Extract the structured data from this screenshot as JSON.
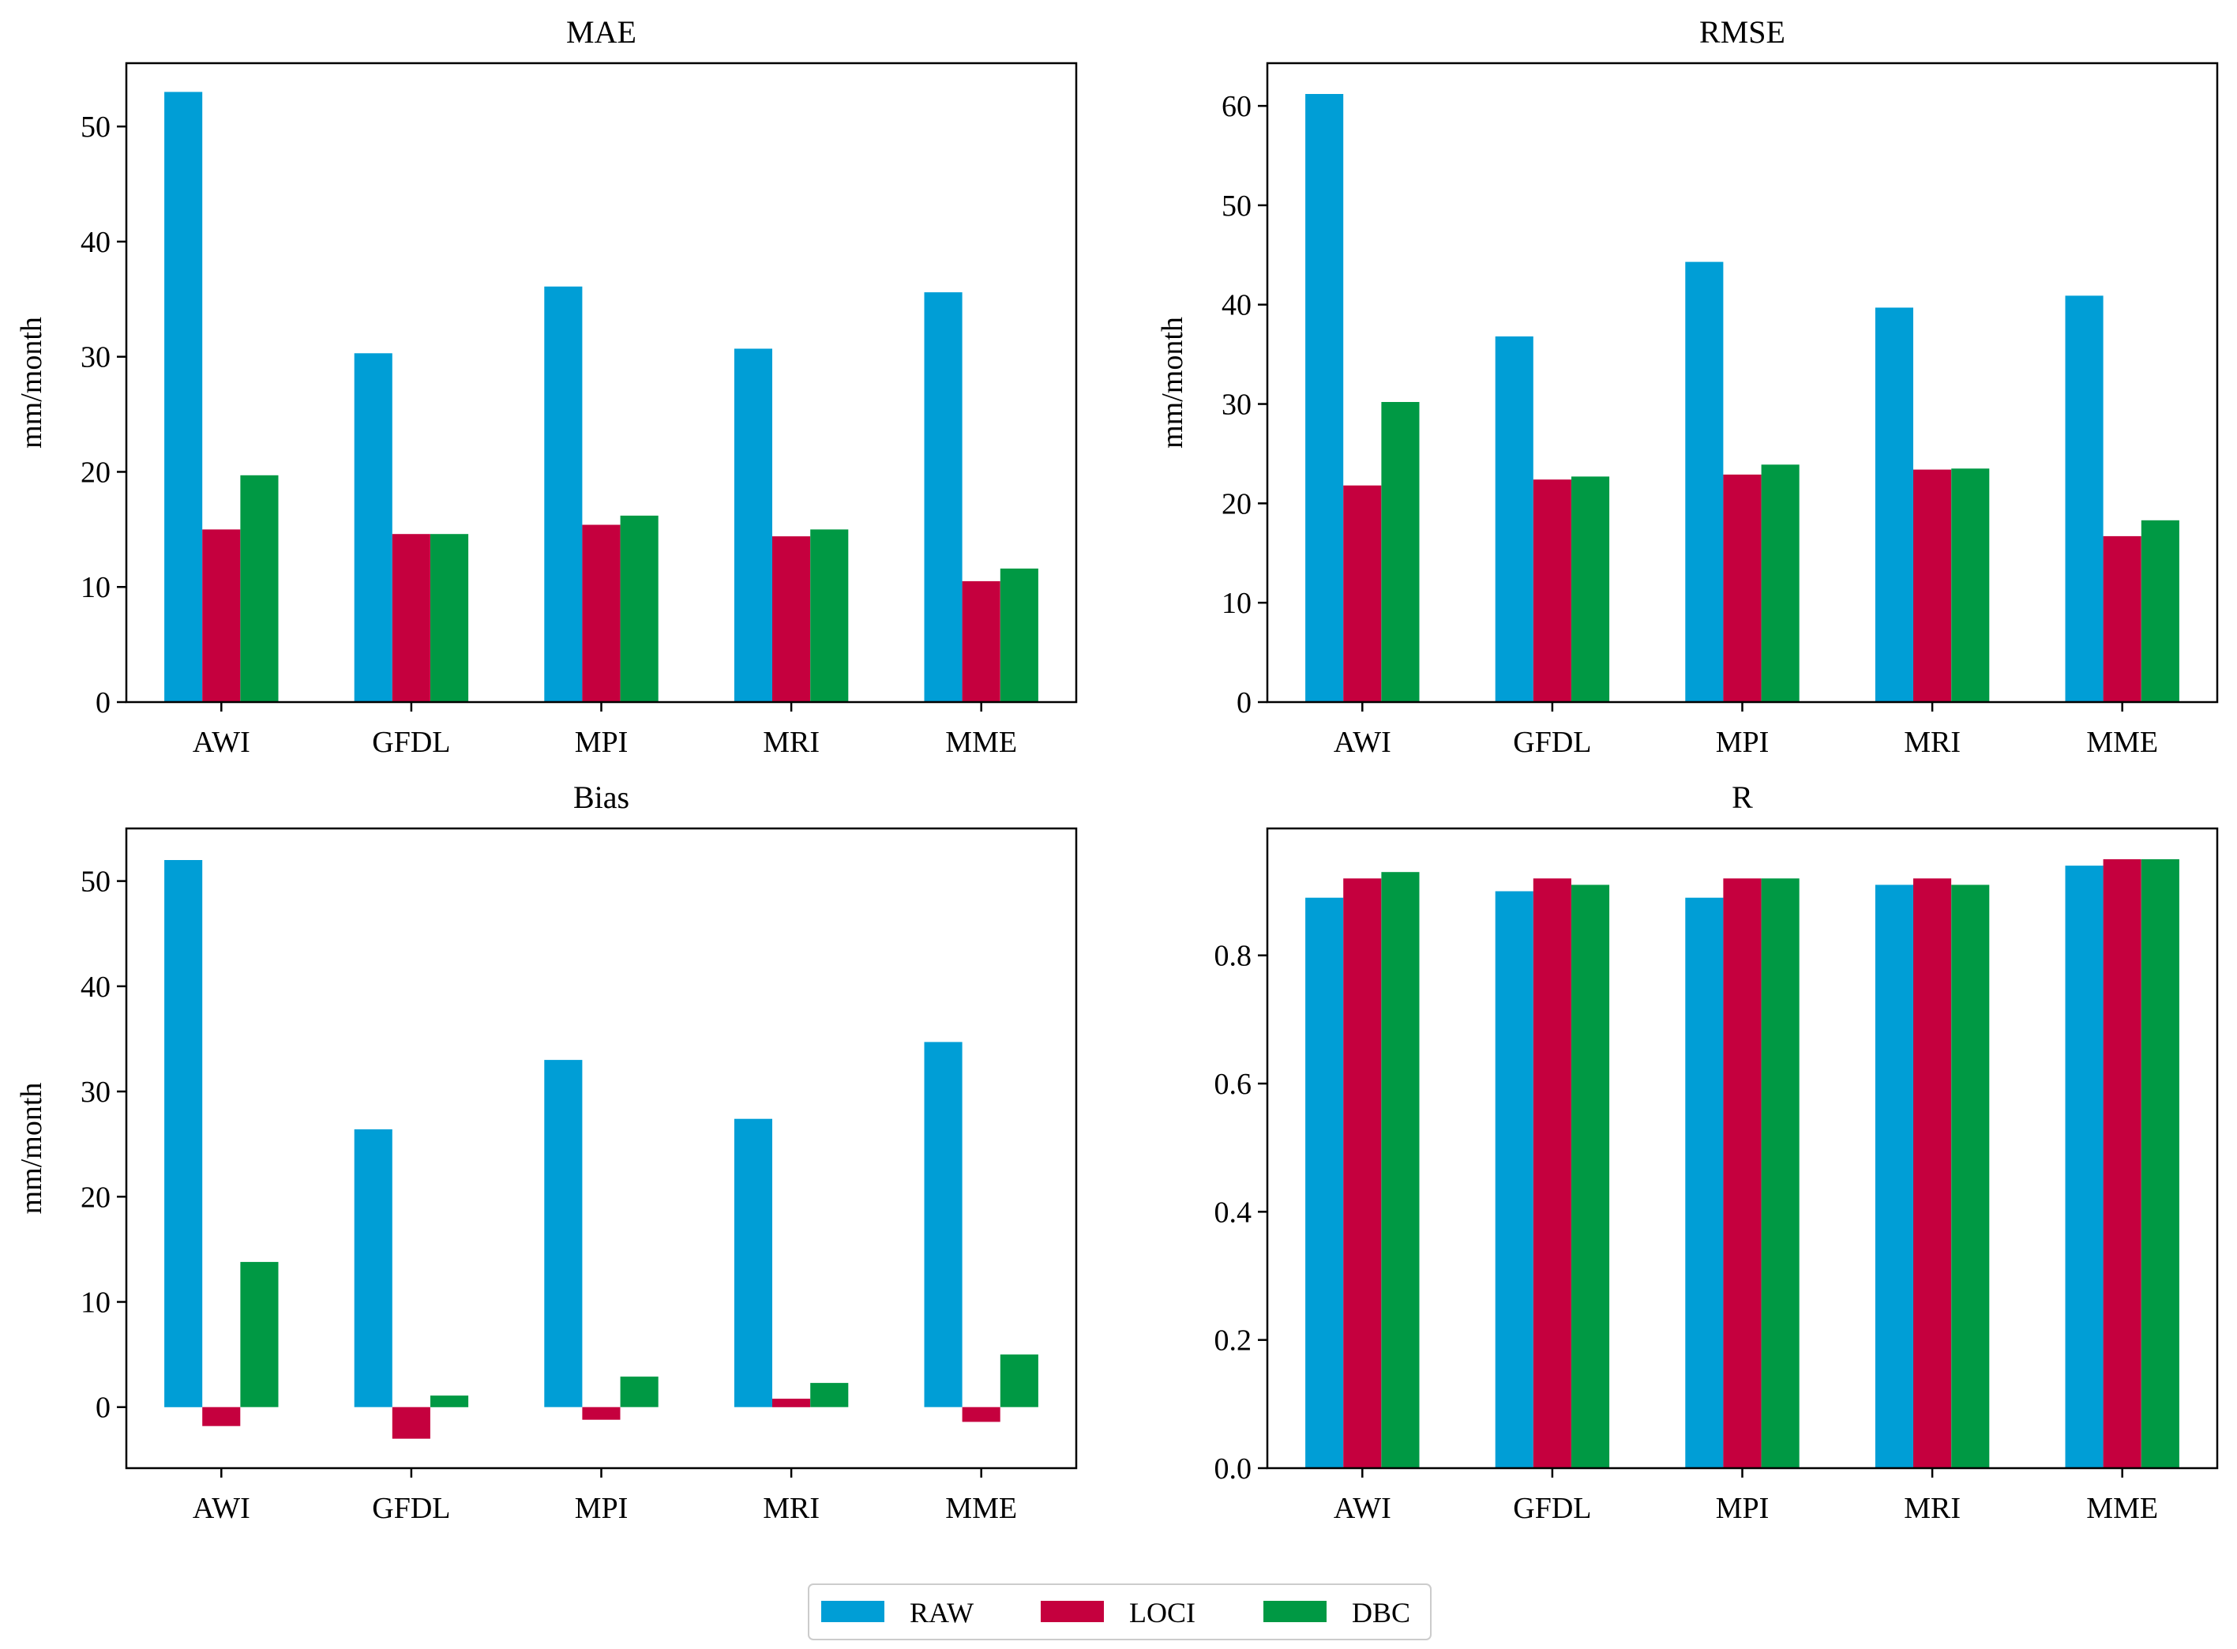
{
  "figure": {
    "legend": [
      {
        "name": "RAW",
        "color": "#009ed6"
      },
      {
        "name": "LOCI",
        "color": "#c5003e"
      },
      {
        "name": "DBC",
        "color": "#009944"
      }
    ]
  },
  "chart_data": [
    {
      "type": "bar",
      "title": "MAE",
      "xlabel": "",
      "ylabel": "mm/month",
      "categories": [
        "AWI",
        "GFDL",
        "MPI",
        "MRI",
        "MME"
      ],
      "ylim": [
        0,
        55.5
      ],
      "yticks": [
        0,
        10,
        20,
        30,
        40,
        50
      ],
      "series": [
        {
          "name": "RAW",
          "values": [
            53.0,
            30.3,
            36.1,
            30.7,
            35.6
          ]
        },
        {
          "name": "LOCI",
          "values": [
            15.0,
            14.6,
            15.4,
            14.4,
            10.5
          ]
        },
        {
          "name": "DBC",
          "values": [
            19.7,
            14.6,
            16.2,
            15.0,
            11.6
          ]
        }
      ]
    },
    {
      "type": "bar",
      "title": "RMSE",
      "xlabel": "",
      "ylabel": "mm/month",
      "categories": [
        "AWI",
        "GFDL",
        "MPI",
        "MRI",
        "MME"
      ],
      "ylim": [
        0,
        64.3
      ],
      "yticks": [
        0,
        10,
        20,
        30,
        40,
        50,
        60
      ],
      "series": [
        {
          "name": "RAW",
          "values": [
            61.2,
            36.8,
            44.3,
            39.7,
            40.9
          ]
        },
        {
          "name": "LOCI",
          "values": [
            21.8,
            22.4,
            22.9,
            23.4,
            16.7
          ]
        },
        {
          "name": "DBC",
          "values": [
            30.2,
            22.7,
            23.9,
            23.5,
            18.3
          ]
        }
      ]
    },
    {
      "type": "bar",
      "title": "Bias",
      "xlabel": "",
      "ylabel": "mm/month",
      "categories": [
        "AWI",
        "GFDL",
        "MPI",
        "MRI",
        "MME"
      ],
      "ylim": [
        -5.8,
        55.0
      ],
      "yticks": [
        0,
        10,
        20,
        30,
        40,
        50
      ],
      "series": [
        {
          "name": "RAW",
          "values": [
            52.0,
            26.4,
            33.0,
            27.4,
            34.7
          ]
        },
        {
          "name": "LOCI",
          "values": [
            -1.8,
            -3.0,
            -1.2,
            0.8,
            -1.4
          ]
        },
        {
          "name": "DBC",
          "values": [
            13.8,
            1.1,
            2.9,
            2.3,
            5.0
          ]
        }
      ]
    },
    {
      "type": "bar",
      "title": "R",
      "xlabel": "",
      "ylabel": "",
      "categories": [
        "AWI",
        "GFDL",
        "MPI",
        "MRI",
        "MME"
      ],
      "ylim": [
        0,
        0.998
      ],
      "yticks": [
        0.0,
        0.2,
        0.4,
        0.6,
        0.8
      ],
      "ytick_labels": [
        "0.0",
        "0.2",
        "0.4",
        "0.6",
        "0.8"
      ],
      "series": [
        {
          "name": "RAW",
          "values": [
            0.89,
            0.9,
            0.89,
            0.91,
            0.94
          ]
        },
        {
          "name": "LOCI",
          "values": [
            0.92,
            0.92,
            0.92,
            0.92,
            0.95
          ]
        },
        {
          "name": "DBC",
          "values": [
            0.93,
            0.91,
            0.92,
            0.91,
            0.95
          ]
        }
      ]
    }
  ]
}
